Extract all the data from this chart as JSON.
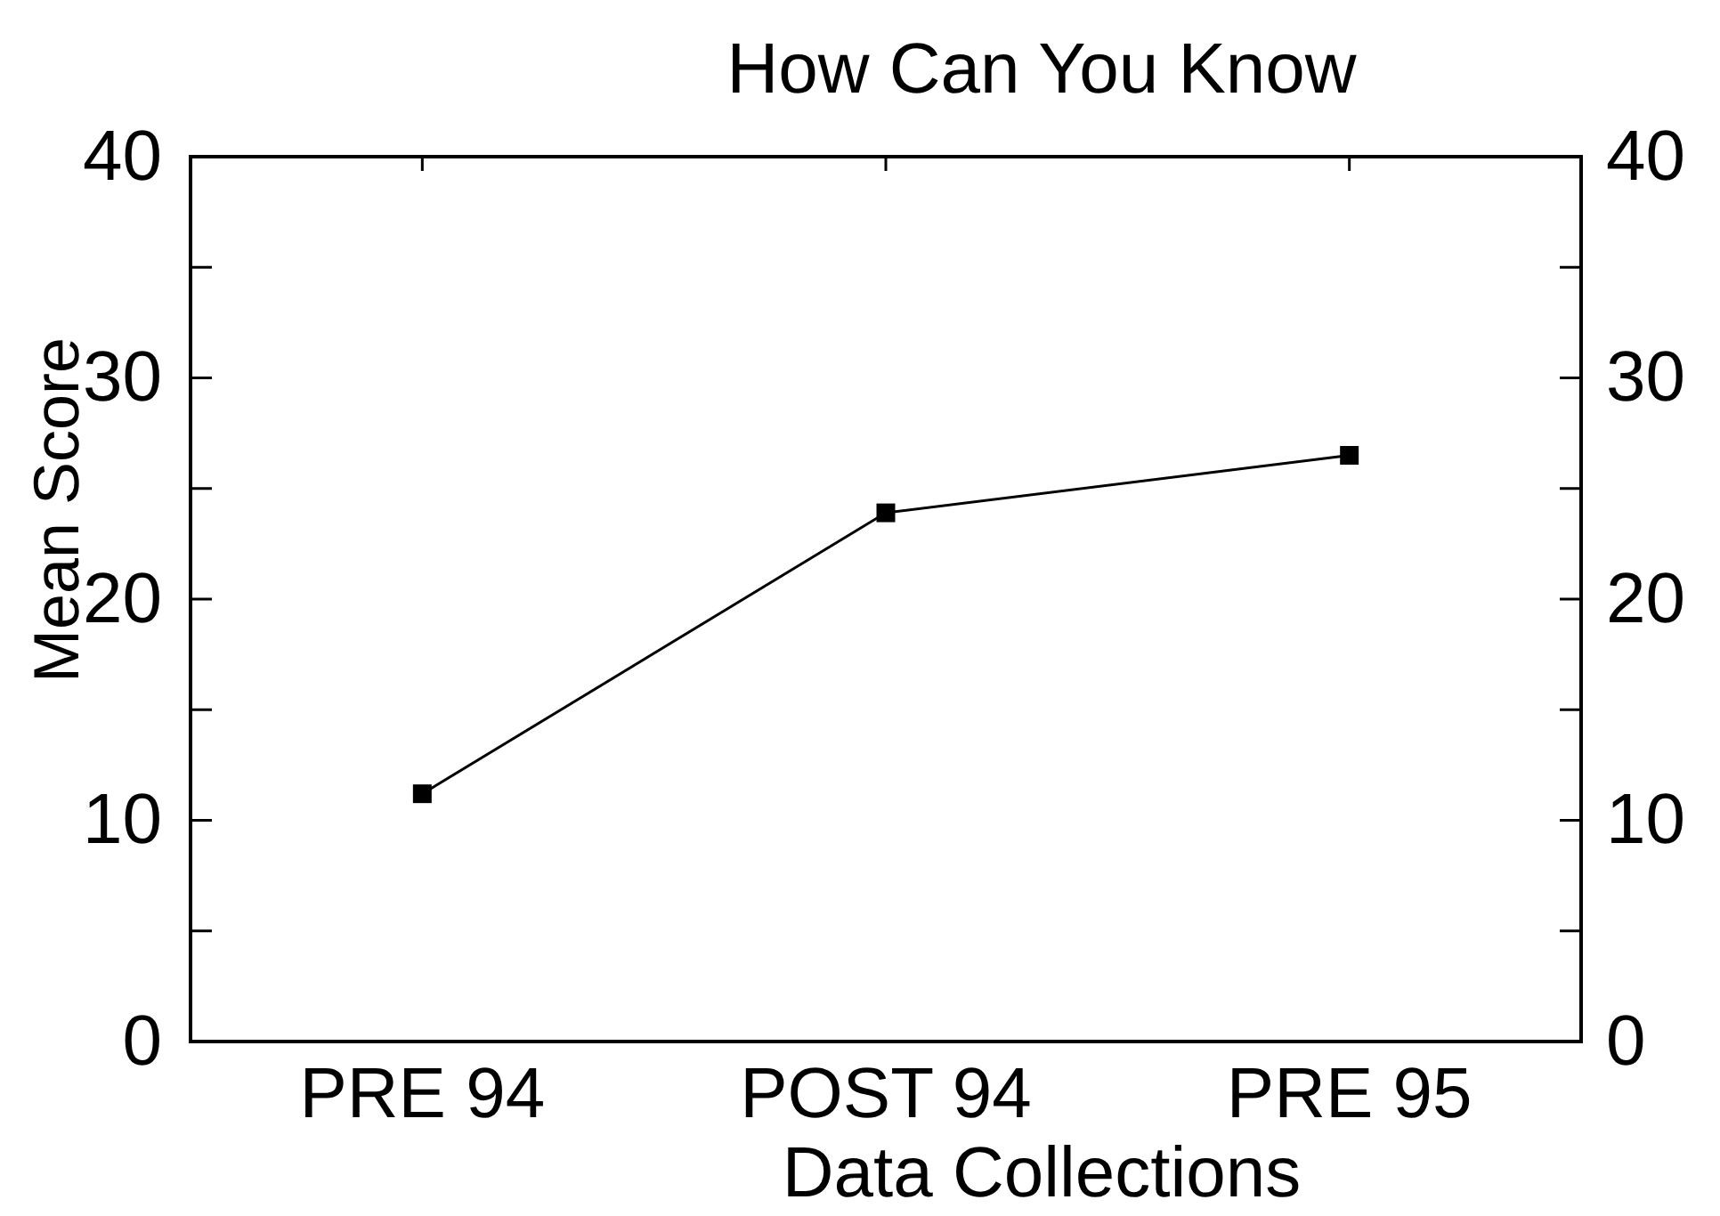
{
  "chart_data": {
    "type": "line",
    "title": "How Can You Know",
    "xlabel": "Data Collections",
    "ylabel": "Mean Score",
    "categories": [
      "PRE 94",
      "POST 94",
      "PRE 95"
    ],
    "series": [
      {
        "color": "#000000",
        "values": [
          11.2,
          23.9,
          26.5
        ]
      }
    ],
    "marker": "square",
    "line_style": "solid",
    "grid": false,
    "ylim": [
      0,
      40
    ],
    "yticks": [
      0,
      {
        "value": 5,
        "label": null
      },
      10,
      {
        "value": 15,
        "label": null
      },
      20,
      {
        "value": 25,
        "label": null
      },
      30,
      {
        "value": 35,
        "label": null
      },
      40
    ],
    "y2lim": [
      0,
      40
    ],
    "y2ticks": [
      0,
      {
        "value": 5,
        "label": null
      },
      10,
      {
        "value": 15,
        "label": null
      },
      20,
      {
        "value": 25,
        "label": null
      },
      30,
      {
        "value": 35,
        "label": null
      },
      40
    ]
  }
}
